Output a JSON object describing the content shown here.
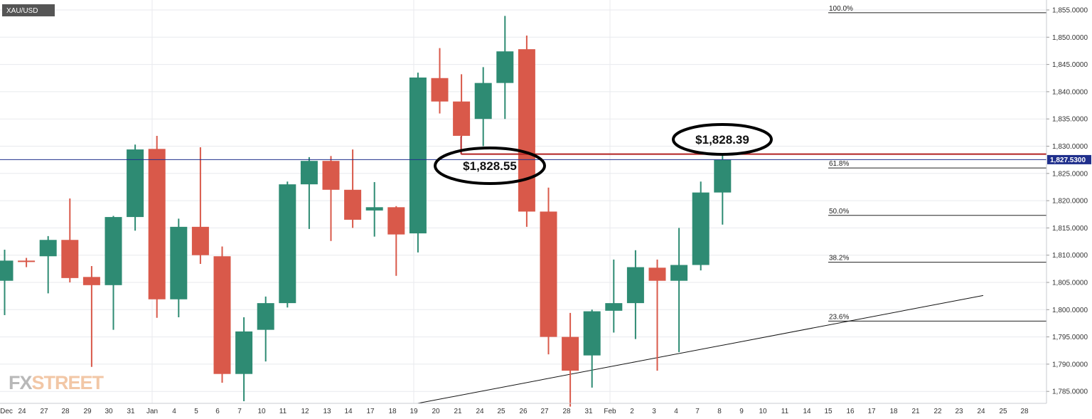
{
  "symbol": "XAU/USD",
  "logo": {
    "part1": "FX",
    "part2": "STREET"
  },
  "colors": {
    "bull": "#2e8b73",
    "bear": "#d9594a",
    "grid": "#e8eaee",
    "resistance": "#b22222",
    "current_price": "#1f2f8c",
    "fib": "#222222"
  },
  "current_price": {
    "value": 1827.53,
    "label": "1,827.5300"
  },
  "callouts": [
    {
      "text": "$1,828.55",
      "price": 1828.55
    },
    {
      "text": "$1,828.39",
      "price": 1828.39
    }
  ],
  "chart_data": {
    "type": "candlestick",
    "title": "",
    "xlabel": "",
    "ylabel": "",
    "ylim": [
      1782,
      1857
    ],
    "grid": true,
    "y_ticks": [
      {
        "value": 1785,
        "label": "1,785.0000"
      },
      {
        "value": 1790,
        "label": "1,790.0000"
      },
      {
        "value": 1795,
        "label": "1,795.0000"
      },
      {
        "value": 1800,
        "label": "1,800.0000"
      },
      {
        "value": 1805,
        "label": "1,805.0000"
      },
      {
        "value": 1810,
        "label": "1,810.0000"
      },
      {
        "value": 1815,
        "label": "1,815.0000"
      },
      {
        "value": 1820,
        "label": "1,820.0000"
      },
      {
        "value": 1825,
        "label": "1,825.0000"
      },
      {
        "value": 1830,
        "label": "1,830.0000"
      },
      {
        "value": 1835,
        "label": "1,835.0000"
      },
      {
        "value": 1840,
        "label": "1,840.0000"
      },
      {
        "value": 1845,
        "label": "1,845.0000"
      },
      {
        "value": 1850,
        "label": "1,850.0000"
      },
      {
        "value": 1855,
        "label": "1,855.0000"
      }
    ],
    "x_ticks": [
      "Dec",
      "24",
      "27",
      "28",
      "29",
      "30",
      "31",
      "Jan",
      "4",
      "5",
      "6",
      "7",
      "10",
      "11",
      "12",
      "13",
      "14",
      "17",
      "18",
      "19",
      "20",
      "21",
      "24",
      "25",
      "26",
      "27",
      "28",
      "31",
      "Feb",
      "2",
      "3",
      "4",
      "7",
      "8",
      "9",
      "10",
      "11",
      "14",
      "15",
      "16",
      "17",
      "18",
      "21",
      "22",
      "23",
      "24",
      "25",
      "28"
    ],
    "candles": [
      {
        "date": "Dec 23",
        "open": 1805.3,
        "high": 1811.0,
        "low": 1799.0,
        "close": 1809.0
      },
      {
        "date": "Dec 24",
        "open": 1809.0,
        "high": 1809.5,
        "low": 1807.8,
        "close": 1808.8
      },
      {
        "date": "Dec 27",
        "open": 1809.8,
        "high": 1813.5,
        "low": 1803.0,
        "close": 1812.8
      },
      {
        "date": "Dec 28",
        "open": 1812.8,
        "high": 1820.4,
        "low": 1805.0,
        "close": 1805.8
      },
      {
        "date": "Dec 29",
        "open": 1806.0,
        "high": 1808.0,
        "low": 1789.5,
        "close": 1804.5
      },
      {
        "date": "Dec 30",
        "open": 1804.5,
        "high": 1817.2,
        "low": 1796.3,
        "close": 1817.0
      },
      {
        "date": "Dec 31",
        "open": 1817.0,
        "high": 1830.3,
        "low": 1814.5,
        "close": 1829.4
      },
      {
        "date": "Jan 3",
        "open": 1829.5,
        "high": 1831.9,
        "low": 1798.5,
        "close": 1801.9
      },
      {
        "date": "Jan 4",
        "open": 1801.9,
        "high": 1816.7,
        "low": 1798.6,
        "close": 1815.2
      },
      {
        "date": "Jan 5",
        "open": 1815.2,
        "high": 1829.8,
        "low": 1808.4,
        "close": 1810.0
      },
      {
        "date": "Jan 6",
        "open": 1809.8,
        "high": 1811.6,
        "low": 1786.6,
        "close": 1788.2
      },
      {
        "date": "Jan 7",
        "open": 1788.2,
        "high": 1798.6,
        "low": 1783.2,
        "close": 1796.0
      },
      {
        "date": "Jan 10",
        "open": 1796.3,
        "high": 1802.4,
        "low": 1790.5,
        "close": 1801.2
      },
      {
        "date": "Jan 11",
        "open": 1801.2,
        "high": 1823.5,
        "low": 1800.4,
        "close": 1823.0
      },
      {
        "date": "Jan 12",
        "open": 1823.0,
        "high": 1828.0,
        "low": 1814.8,
        "close": 1827.3
      },
      {
        "date": "Jan 13",
        "open": 1827.3,
        "high": 1828.2,
        "low": 1812.6,
        "close": 1822.0
      },
      {
        "date": "Jan 14",
        "open": 1822.0,
        "high": 1829.4,
        "low": 1815.0,
        "close": 1816.5
      },
      {
        "date": "Jan 17",
        "open": 1818.2,
        "high": 1823.4,
        "low": 1813.4,
        "close": 1818.8
      },
      {
        "date": "Jan 18",
        "open": 1818.8,
        "high": 1819.0,
        "low": 1806.2,
        "close": 1813.8
      },
      {
        "date": "Jan 19",
        "open": 1814.0,
        "high": 1843.5,
        "low": 1810.5,
        "close": 1842.6
      },
      {
        "date": "Jan 20",
        "open": 1842.5,
        "high": 1848.0,
        "low": 1836.0,
        "close": 1838.2
      },
      {
        "date": "Jan 21",
        "open": 1838.2,
        "high": 1843.2,
        "low": 1831.7,
        "close": 1831.9
      },
      {
        "date": "Jan 24",
        "open": 1835.0,
        "high": 1844.5,
        "low": 1830.0,
        "close": 1841.6
      },
      {
        "date": "Jan 25",
        "open": 1841.6,
        "high": 1853.9,
        "low": 1835.0,
        "close": 1847.4
      },
      {
        "date": "Jan 26",
        "open": 1847.8,
        "high": 1850.3,
        "low": 1815.2,
        "close": 1818.0
      },
      {
        "date": "Jan 27",
        "open": 1818.0,
        "high": 1822.4,
        "low": 1791.8,
        "close": 1795.0
      },
      {
        "date": "Jan 28",
        "open": 1795.0,
        "high": 1799.4,
        "low": 1782.2,
        "close": 1788.8
      },
      {
        "date": "Jan 31",
        "open": 1791.6,
        "high": 1800.0,
        "low": 1785.7,
        "close": 1799.7
      },
      {
        "date": "Feb 1",
        "open": 1799.8,
        "high": 1809.2,
        "low": 1795.8,
        "close": 1801.2
      },
      {
        "date": "Feb 2",
        "open": 1801.2,
        "high": 1810.9,
        "low": 1794.6,
        "close": 1807.8
      },
      {
        "date": "Feb 3",
        "open": 1807.7,
        "high": 1809.2,
        "low": 1788.8,
        "close": 1805.3
      },
      {
        "date": "Feb 4",
        "open": 1805.3,
        "high": 1815.0,
        "low": 1792.2,
        "close": 1808.2
      },
      {
        "date": "Feb 7",
        "open": 1808.2,
        "high": 1823.5,
        "low": 1807.2,
        "close": 1821.5
      },
      {
        "date": "Feb 8",
        "open": 1821.5,
        "high": 1828.4,
        "low": 1815.6,
        "close": 1827.5
      }
    ],
    "fibonacci_levels": [
      {
        "label": "100.0%",
        "price": 1854.5
      },
      {
        "label": "61.8%",
        "price": 1826.0
      },
      {
        "label": "50.0%",
        "price": 1817.3
      },
      {
        "label": "38.2%",
        "price": 1808.7
      },
      {
        "label": "23.6%",
        "price": 1797.9
      }
    ],
    "trendline": {
      "from": {
        "date": "Jan 19",
        "price": 1782.8
      },
      "to": {
        "date": "Feb 24",
        "price": 1802.6
      }
    },
    "resistance_line": {
      "from_date": "Jan 21",
      "to_date": "Mar 1",
      "price": 1828.55
    }
  }
}
